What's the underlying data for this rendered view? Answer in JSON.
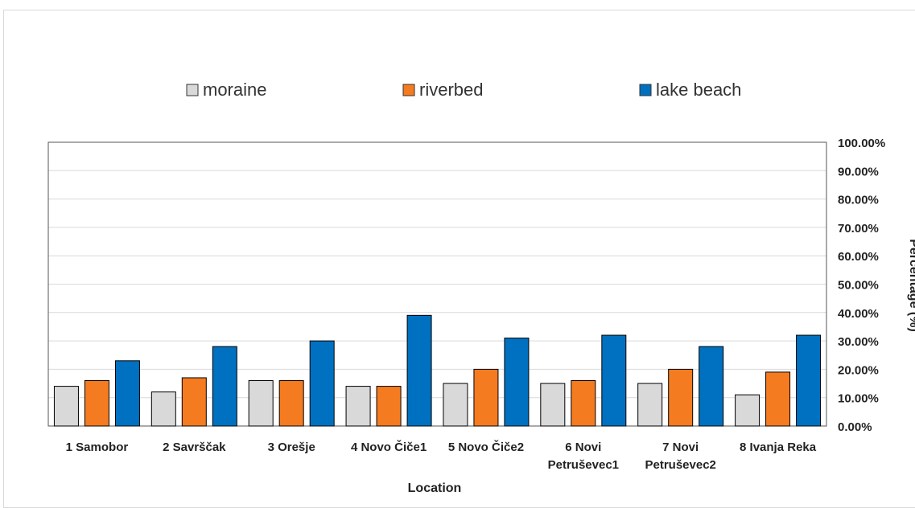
{
  "chart_data": {
    "type": "bar",
    "categories": [
      [
        "1 Samobor"
      ],
      [
        "2 Savrščak"
      ],
      [
        "3 Orešje"
      ],
      [
        "4 Novo Čiče1"
      ],
      [
        "5 Novo Čiče2"
      ],
      [
        "6 Novi",
        "Petruševec1"
      ],
      [
        "7 Novi",
        "Petruševec2"
      ],
      [
        "8 Ivanja Reka"
      ]
    ],
    "series": [
      {
        "name": "moraine",
        "color": "#d9d9d9",
        "values": [
          14,
          12,
          16,
          14,
          15,
          15,
          15,
          11
        ]
      },
      {
        "name": "riverbed",
        "color": "#f47b20",
        "values": [
          16,
          17,
          16,
          14,
          20,
          16,
          20,
          19
        ]
      },
      {
        "name": "lake beach",
        "color": "#0070c0",
        "values": [
          23,
          28,
          30,
          39,
          31,
          32,
          28,
          32
        ]
      }
    ],
    "y_ticks": [
      "0.00%",
      "10.00%",
      "20.00%",
      "30.00%",
      "40.00%",
      "50.00%",
      "60.00%",
      "70.00%",
      "80.00%",
      "90.00%",
      "100.00%"
    ],
    "ylim": [
      0,
      100
    ],
    "y_axis_side": "right",
    "xlabel": "Location",
    "ylabel": "Percentage (%)",
    "legend_position": "top",
    "grid": true
  }
}
